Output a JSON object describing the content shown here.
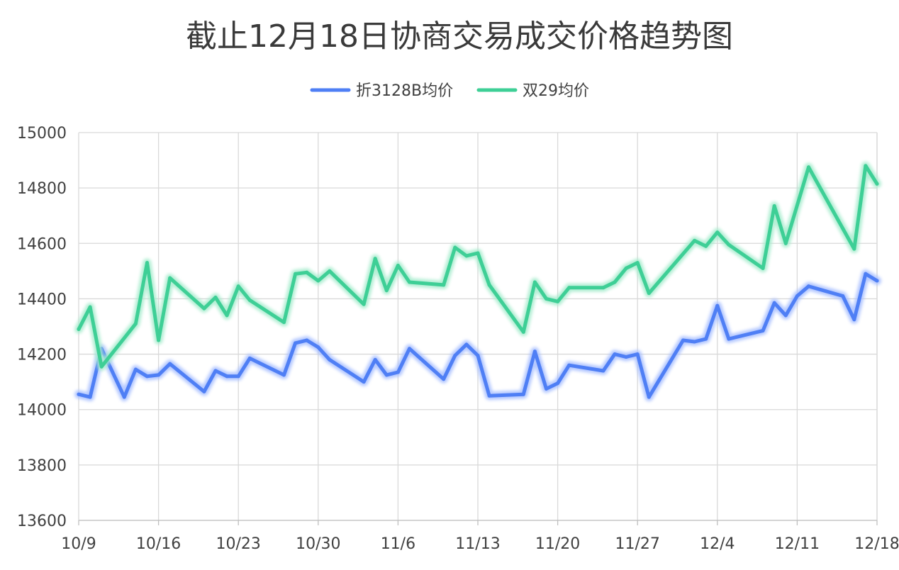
{
  "chart_data": {
    "type": "line",
    "title": "截止12月18日协商交易成交价格趋势图",
    "xlabel": "",
    "ylabel": "",
    "ylim": [
      13600,
      15000
    ],
    "yticks": [
      13600,
      13800,
      14000,
      14200,
      14400,
      14600,
      14800,
      15000
    ],
    "x_ticks": [
      "10/9",
      "10/16",
      "10/23",
      "10/30",
      "11/6",
      "11/13",
      "11/20",
      "11/27",
      "12/4",
      "12/11",
      "12/18"
    ],
    "x_start": "10/9",
    "x_end": "12/18",
    "grid": true,
    "legend_position": "top-center",
    "series": [
      {
        "name": "折3128B均价",
        "color": "#4f7ff5",
        "glow": "#a9c0ff",
        "points": [
          [
            "10/9",
            14055
          ],
          [
            "10/10",
            14045
          ],
          [
            "10/11",
            14220
          ],
          [
            "10/13",
            14045
          ],
          [
            "10/14",
            14145
          ],
          [
            "10/15",
            14120
          ],
          [
            "10/16",
            14125
          ],
          [
            "10/17",
            14165
          ],
          [
            "10/20",
            14065
          ],
          [
            "10/21",
            14140
          ],
          [
            "10/22",
            14120
          ],
          [
            "10/23",
            14120
          ],
          [
            "10/24",
            14185
          ],
          [
            "10/27",
            14125
          ],
          [
            "10/28",
            14240
          ],
          [
            "10/29",
            14250
          ],
          [
            "10/30",
            14225
          ],
          [
            "10/31",
            14180
          ],
          [
            "11/3",
            14100
          ],
          [
            "11/4",
            14180
          ],
          [
            "11/5",
            14125
          ],
          [
            "11/6",
            14135
          ],
          [
            "11/7",
            14220
          ],
          [
            "11/10",
            14110
          ],
          [
            "11/11",
            14195
          ],
          [
            "11/12",
            14235
          ],
          [
            "11/13",
            14195
          ],
          [
            "11/14",
            14050
          ],
          [
            "11/17",
            14055
          ],
          [
            "11/18",
            14210
          ],
          [
            "11/19",
            14075
          ],
          [
            "11/20",
            14095
          ],
          [
            "11/21",
            14160
          ],
          [
            "11/24",
            14140
          ],
          [
            "11/25",
            14200
          ],
          [
            "11/26",
            14190
          ],
          [
            "11/27",
            14200
          ],
          [
            "11/28",
            14045
          ],
          [
            "12/1",
            14250
          ],
          [
            "12/2",
            14245
          ],
          [
            "12/3",
            14255
          ],
          [
            "12/4",
            14375
          ],
          [
            "12/5",
            14255
          ],
          [
            "12/8",
            14285
          ],
          [
            "12/9",
            14385
          ],
          [
            "12/10",
            14340
          ],
          [
            "12/11",
            14410
          ],
          [
            "12/12",
            14445
          ],
          [
            "12/15",
            14410
          ],
          [
            "12/16",
            14325
          ],
          [
            "12/17",
            14490
          ],
          [
            "12/18",
            14465
          ]
        ]
      },
      {
        "name": "双29均价",
        "color": "#3ecf96",
        "glow": "#a7ecce",
        "points": [
          [
            "10/9",
            14290
          ],
          [
            "10/10",
            14370
          ],
          [
            "10/11",
            14155
          ],
          [
            "10/14",
            14310
          ],
          [
            "10/15",
            14530
          ],
          [
            "10/16",
            14250
          ],
          [
            "10/17",
            14475
          ],
          [
            "10/20",
            14365
          ],
          [
            "10/21",
            14405
          ],
          [
            "10/22",
            14340
          ],
          [
            "10/23",
            14445
          ],
          [
            "10/24",
            14395
          ],
          [
            "10/27",
            14315
          ],
          [
            "10/28",
            14490
          ],
          [
            "10/29",
            14495
          ],
          [
            "10/30",
            14465
          ],
          [
            "10/31",
            14500
          ],
          [
            "11/3",
            14380
          ],
          [
            "11/4",
            14545
          ],
          [
            "11/5",
            14430
          ],
          [
            "11/6",
            14520
          ],
          [
            "11/7",
            14460
          ],
          [
            "11/10",
            14450
          ],
          [
            "11/11",
            14585
          ],
          [
            "11/12",
            14555
          ],
          [
            "11/13",
            14565
          ],
          [
            "11/14",
            14450
          ],
          [
            "11/17",
            14280
          ],
          [
            "11/18",
            14460
          ],
          [
            "11/19",
            14400
          ],
          [
            "11/20",
            14390
          ],
          [
            "11/21",
            14440
          ],
          [
            "11/24",
            14440
          ],
          [
            "11/25",
            14460
          ],
          [
            "11/26",
            14510
          ],
          [
            "11/27",
            14530
          ],
          [
            "11/28",
            14420
          ],
          [
            "12/2",
            14610
          ],
          [
            "12/3",
            14590
          ],
          [
            "12/4",
            14640
          ],
          [
            "12/5",
            14595
          ],
          [
            "12/8",
            14510
          ],
          [
            "12/9",
            14735
          ],
          [
            "12/10",
            14600
          ],
          [
            "12/12",
            14875
          ],
          [
            "12/16",
            14580
          ],
          [
            "12/17",
            14880
          ],
          [
            "12/18",
            14815
          ]
        ]
      }
    ]
  }
}
